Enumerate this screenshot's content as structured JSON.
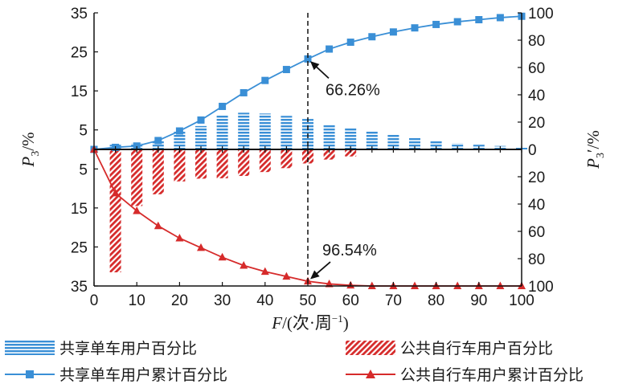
{
  "chart_data": {
    "type": "bar+line",
    "x": [
      0,
      5,
      10,
      15,
      20,
      25,
      30,
      35,
      40,
      45,
      50,
      55,
      60,
      65,
      70,
      75,
      80,
      85,
      90,
      95,
      100
    ],
    "xticks": [
      "0",
      "10",
      "20",
      "30",
      "40",
      "50",
      "60",
      "70",
      "80",
      "90",
      "100"
    ],
    "xlabel": {
      "var": "F",
      "rest": "/(次·周",
      "sup": "−1",
      "close": ")"
    },
    "ylabel_left": {
      "var": "P",
      "sub": "3",
      "rest": "/%"
    },
    "ylabel_right": {
      "var": "P",
      "sub": "3",
      "prime": "′",
      "rest": "/%"
    },
    "left_ticks_top": [
      "35",
      "25",
      "15",
      "5"
    ],
    "left_ticks_bottom": [
      "5",
      "15",
      "25",
      "35"
    ],
    "right_ticks_top": [
      "100",
      "80",
      "60",
      "40",
      "20",
      "0"
    ],
    "right_ticks_bottom": [
      "20",
      "40",
      "60",
      "80",
      "100"
    ],
    "left_range": [
      0,
      35
    ],
    "right_range": [
      0,
      100
    ],
    "series": [
      {
        "name": "共享单车用户百分比",
        "kind": "bar-up",
        "color": "#3a8fd6",
        "values": [
          0,
          1.2,
          1.6,
          2.2,
          4.6,
          6.0,
          8.8,
          9.4,
          9.2,
          8.6,
          7.8,
          6.4,
          5.4,
          4.8,
          4.0,
          3.0,
          2.2,
          1.6,
          1.2,
          0.9,
          0.7
        ]
      },
      {
        "name": "公共自行车用户百分比",
        "kind": "bar-down",
        "color": "#d62b2b",
        "values": [
          0,
          31.5,
          14.5,
          11.5,
          8.2,
          7.5,
          7.4,
          6.8,
          5.8,
          4.8,
          3.6,
          2.6,
          1.8,
          0,
          0,
          0,
          0,
          0,
          0,
          0,
          0
        ]
      },
      {
        "name": "共享单车用户累计百分比",
        "kind": "line-up",
        "color": "#3a8fd6",
        "marker": "square",
        "values": [
          0,
          1.5,
          2.5,
          6.5,
          13.5,
          21.5,
          31.5,
          41.5,
          50.5,
          58.5,
          66.26,
          73.5,
          78.5,
          82.5,
          86.0,
          89.0,
          91.5,
          93.5,
          95.0,
          96.5,
          97.5
        ]
      },
      {
        "name": "公共自行车用户累计百分比",
        "kind": "line-down",
        "color": "#d62b2b",
        "marker": "triangle",
        "values": [
          0,
          32,
          45,
          56,
          65,
          72,
          79,
          85,
          89.5,
          93,
          96.54,
          98.5,
          99.5,
          100,
          100,
          100,
          100,
          100,
          100,
          100,
          100
        ]
      }
    ],
    "reference_x": 50,
    "annotations": [
      {
        "text": "66.26%",
        "series": 2,
        "x": 50
      },
      {
        "text": "96.54%",
        "series": 3,
        "x": 50
      }
    ],
    "legend_position": "bottom"
  }
}
